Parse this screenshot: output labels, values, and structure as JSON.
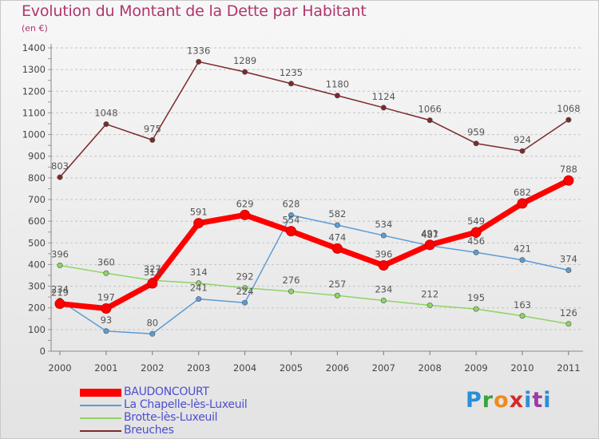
{
  "header": {
    "title": "Evolution du Montant de la Dette par Habitant",
    "subtitle": "(en €)"
  },
  "logo_text": "Proxiti",
  "colors": {
    "title": "#b0356e",
    "legend_text": "#4d4dd1",
    "axis": "#888888",
    "grid": "#c4c4c4"
  },
  "chart_data": {
    "type": "line",
    "title": "Evolution du Montant de la Dette par Habitant",
    "subtitle": "(en €)",
    "xlabel": "",
    "ylabel": "",
    "x": [
      "2000",
      "2001",
      "2002",
      "2003",
      "2004",
      "2005",
      "2006",
      "2007",
      "2008",
      "2009",
      "2010",
      "2011"
    ],
    "ylim": [
      0,
      1400
    ],
    "yticks": [
      0,
      100,
      200,
      300,
      400,
      500,
      600,
      700,
      800,
      900,
      1000,
      1100,
      1200,
      1300,
      1400
    ],
    "grid": "horizontal-dashed",
    "legend_position": "bottom-left",
    "series": [
      {
        "name": "BAUDONCOURT",
        "color": "#ff0000",
        "values": [
          219,
          197,
          313,
          591,
          629,
          554,
          474,
          396,
          491,
          549,
          682,
          788
        ]
      },
      {
        "name": "La Chapelle-lès-Luxeuil",
        "color": "#5b9bd5",
        "values": [
          234,
          93,
          80,
          241,
          224,
          628,
          582,
          534,
          487,
          456,
          421,
          374
        ]
      },
      {
        "name": "Brotte-lès-Luxeuil",
        "color": "#8fd464",
        "values": [
          396,
          360,
          327,
          314,
          292,
          276,
          257,
          234,
          212,
          195,
          163,
          126
        ]
      },
      {
        "name": "Breuches",
        "color": "#7a2a2a",
        "values": [
          803,
          1048,
          975,
          1336,
          1289,
          1235,
          1180,
          1124,
          1066,
          959,
          924,
          1068
        ]
      }
    ]
  }
}
